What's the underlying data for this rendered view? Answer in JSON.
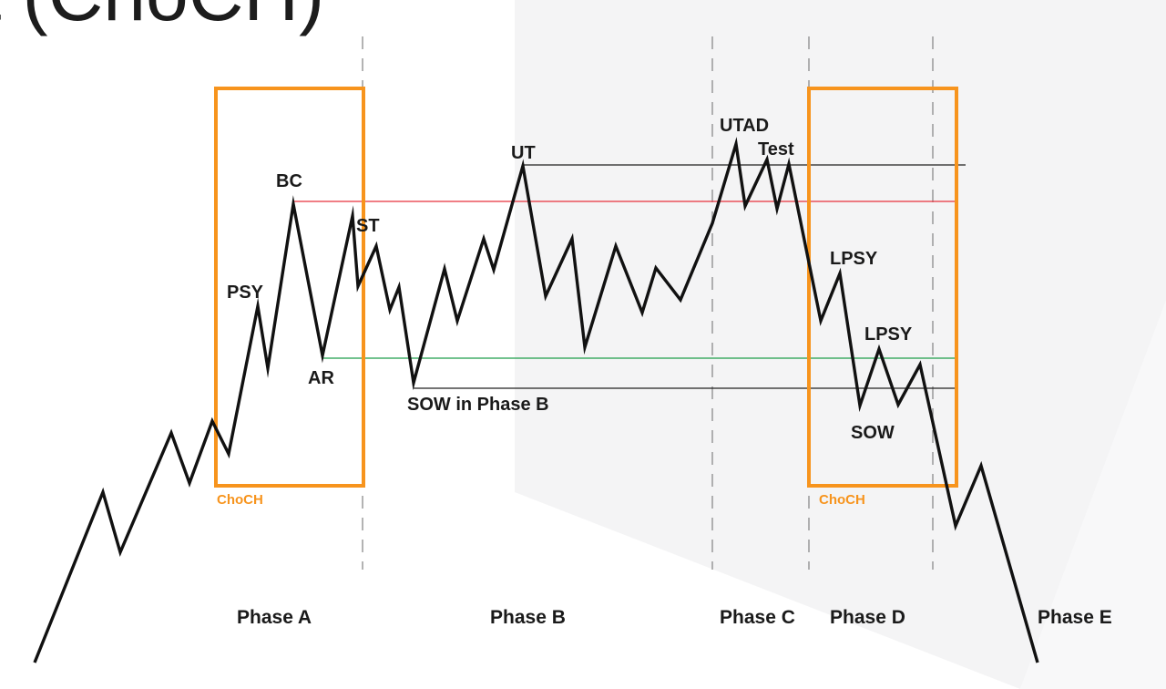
{
  "title": "t (ChoCH)",
  "colors": {
    "choch_orange": "#f7941d",
    "resistance_red": "#e8323c",
    "support_green": "#1e9e4a",
    "level_black": "#222222",
    "price_line": "#111111",
    "divider_gray": "#8a8a8a"
  },
  "event_labels": {
    "psy": "PSY",
    "bc": "BC",
    "ar": "AR",
    "st": "ST",
    "ut": "UT",
    "sow_phase_b": "SOW in Phase B",
    "utad": "UTAD",
    "test": "Test",
    "lpsy_1": "LPSY",
    "lpsy_2": "LPSY",
    "sow": "SOW"
  },
  "choch_labels": {
    "left": "ChoCH",
    "right": "ChoCH"
  },
  "phases": {
    "a": "Phase A",
    "b": "Phase B",
    "c": "Phase C",
    "d": "Phase D",
    "e": "Phase E"
  }
}
